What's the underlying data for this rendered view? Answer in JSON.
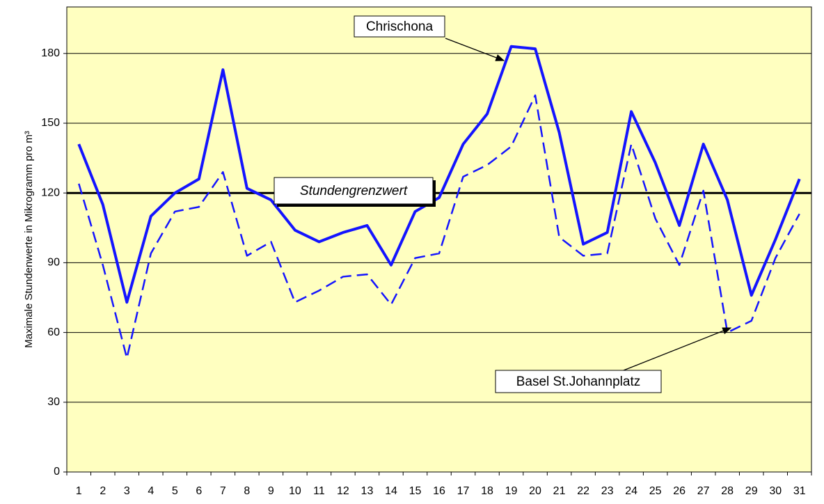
{
  "chart_data": {
    "type": "line",
    "y_label": "Maximale Stundenwerte in Mikrogramm pro m³",
    "categories": [
      "1",
      "2",
      "3",
      "4",
      "5",
      "6",
      "7",
      "8",
      "9",
      "10",
      "11",
      "12",
      "13",
      "14",
      "15",
      "16",
      "17",
      "18",
      "19",
      "20",
      "21",
      "22",
      "23",
      "24",
      "25",
      "26",
      "27",
      "28",
      "29",
      "30",
      "31"
    ],
    "series": [
      {
        "name": "Chrischona",
        "color": "#1414ff",
        "style": "solid",
        "values": [
          141,
          115,
          73,
          110,
          120,
          126,
          173,
          122,
          117,
          104,
          99,
          103,
          106,
          89,
          112,
          118,
          141,
          154,
          183,
          182,
          146,
          98,
          103,
          155,
          133,
          106,
          141,
          117,
          76,
          100,
          126
        ]
      },
      {
        "name": "Basel St.Johannplatz",
        "color": "#1414ff",
        "style": "dashed",
        "values": [
          124,
          89,
          49,
          94,
          112,
          114,
          129,
          93,
          99,
          73,
          78,
          84,
          85,
          72,
          92,
          94,
          127,
          132,
          140,
          162,
          101,
          93,
          94,
          141,
          109,
          89,
          121,
          60,
          65,
          92,
          111
        ]
      }
    ],
    "threshold": {
      "value": 120,
      "label": "Stundengrenzwert"
    },
    "ylim": [
      0,
      200
    ],
    "yticks": [
      0,
      30,
      60,
      90,
      120,
      150,
      180
    ],
    "grid": true
  }
}
